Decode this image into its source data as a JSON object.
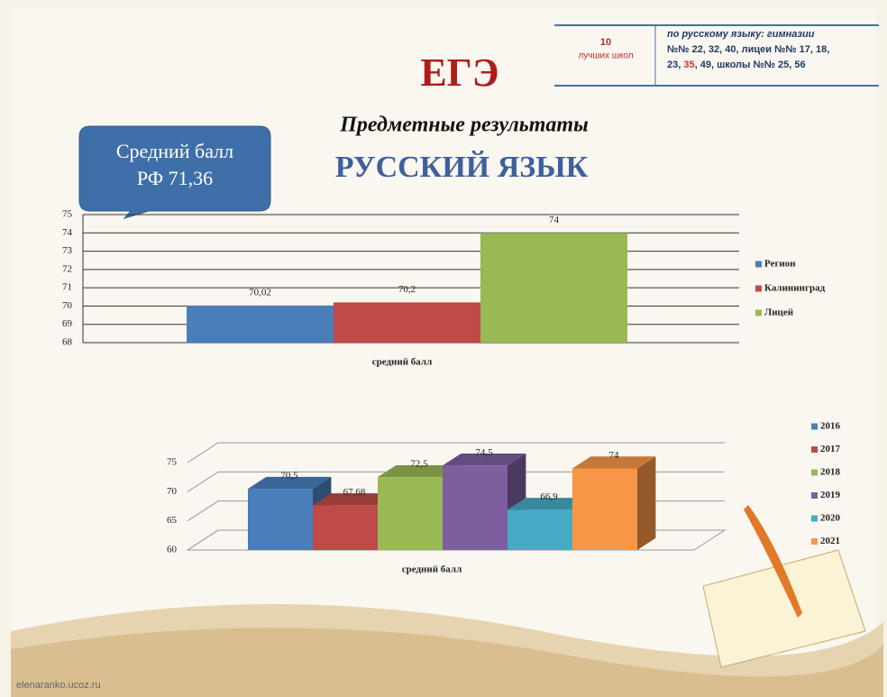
{
  "header": {
    "title": "ЕГЭ",
    "subtitle": "Предметные результаты",
    "subject": "РУССКИЙ ЯЗЫК",
    "callout": [
      "Средний балл",
      "РФ 71,36"
    ],
    "top_count": [
      "10",
      "лучших школ"
    ],
    "schools_note": [
      "по русскому языку: гимназии",
      "№№ 22, 32, 40, лицеи №№ 17, 18,",
      "23, ",
      "35",
      ", 49, школы №№ 25, 56"
    ]
  },
  "footer": "elenaranko.ucoz.ru",
  "chart_data": [
    {
      "type": "bar",
      "categories": [
        "средний балл"
      ],
      "series": [
        {
          "name": "Регион",
          "color": "#4a7ebb",
          "values": [
            70.02
          ],
          "value_labels": [
            "70,02"
          ]
        },
        {
          "name": "Калининград",
          "color": "#be4b48",
          "values": [
            70.2
          ],
          "value_labels": [
            "70,2"
          ]
        },
        {
          "name": "Лицей",
          "color": "#98b954",
          "values": [
            74
          ],
          "value_labels": [
            "74"
          ]
        }
      ],
      "ylim": [
        68,
        75
      ],
      "yticks": [
        68,
        69,
        70,
        71,
        72,
        73,
        74,
        75
      ],
      "grid": true,
      "legend": "right"
    },
    {
      "type": "bar",
      "three_d": true,
      "categories": [
        "средний балл"
      ],
      "series": [
        {
          "name": "2016",
          "color": "#4a7ebb",
          "values": [
            70.5
          ],
          "value_labels": [
            "70,5"
          ]
        },
        {
          "name": "2017",
          "color": "#be4b48",
          "values": [
            67.68
          ],
          "value_labels": [
            "67,68"
          ]
        },
        {
          "name": "2018",
          "color": "#98b954",
          "values": [
            72.5
          ],
          "value_labels": [
            "72,5"
          ]
        },
        {
          "name": "2019",
          "color": "#7d5fa0",
          "values": [
            74.5
          ],
          "value_labels": [
            "74,5"
          ]
        },
        {
          "name": "2020",
          "color": "#46aac5",
          "values": [
            66.9
          ],
          "value_labels": [
            "66,9"
          ]
        },
        {
          "name": "2021",
          "color": "#f79646",
          "values": [
            74
          ],
          "value_labels": [
            "74"
          ]
        }
      ],
      "ylim": [
        60,
        75
      ],
      "yticks": [
        60,
        65,
        70,
        75
      ],
      "grid": true,
      "legend": "right"
    }
  ]
}
